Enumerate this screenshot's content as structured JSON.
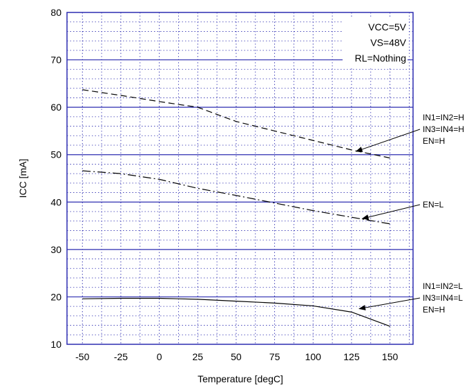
{
  "chart_data": {
    "type": "line",
    "title": "",
    "xlabel": "Temperature [degC]",
    "ylabel": "ICC [mA]",
    "xlim": [
      -60,
      165
    ],
    "ylim": [
      10,
      80
    ],
    "x_ticks": [
      -50,
      -25,
      0,
      25,
      50,
      75,
      100,
      125,
      150
    ],
    "y_ticks": [
      10,
      20,
      30,
      40,
      50,
      60,
      70,
      80
    ],
    "minor_x_step": 12.5,
    "minor_y_step": 2,
    "grid": true,
    "colors": {
      "major_grid": "#2b2bb0",
      "minor_grid": "#2b2bb0",
      "frame": "#2b2bb0",
      "series": "#000000"
    },
    "conditions": [
      "VCC=5V",
      "VS=48V",
      "RL=Nothing"
    ],
    "series": [
      {
        "dash": "dash",
        "x": [
          -50,
          -25,
          0,
          25,
          50,
          75,
          100,
          125,
          150
        ],
        "values": [
          63.7,
          62.5,
          61.2,
          60.0,
          57.0,
          55.0,
          53.0,
          51.0,
          49.3
        ]
      },
      {
        "dash": "dashdot",
        "x": [
          -50,
          -25,
          0,
          25,
          50,
          75,
          100,
          125,
          150
        ],
        "values": [
          46.6,
          46.0,
          44.8,
          42.9,
          41.4,
          39.8,
          38.2,
          36.8,
          35.4
        ]
      },
      {
        "dash": "solid",
        "x": [
          -50,
          -25,
          0,
          25,
          50,
          75,
          100,
          125,
          150
        ],
        "values": [
          19.6,
          19.7,
          19.7,
          19.5,
          19.1,
          18.7,
          18.1,
          16.8,
          13.8
        ]
      }
    ],
    "annotations": [
      {
        "lines": [
          "IN1=IN2=H",
          "IN3=IN4=H",
          "EN=H"
        ],
        "points_to": {
          "x": 128,
          "y": 50.7
        }
      },
      {
        "lines": [
          "EN=L"
        ],
        "points_to": {
          "x": 132,
          "y": 36.5
        }
      },
      {
        "lines": [
          "IN1=IN2=L",
          "IN3=IN4=L",
          "EN=H"
        ],
        "points_to": {
          "x": 130,
          "y": 17.5
        }
      }
    ]
  }
}
